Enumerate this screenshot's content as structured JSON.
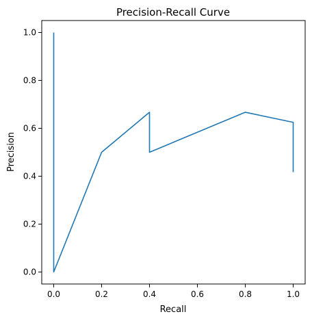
{
  "chart_data": {
    "type": "line",
    "title": "Precision-Recall Curve",
    "xlabel": "Recall",
    "ylabel": "Precision",
    "xlim": [
      -0.05,
      1.05
    ],
    "ylim": [
      -0.05,
      1.05
    ],
    "xticks": [
      0.0,
      0.2,
      0.4,
      0.6,
      0.8,
      1.0
    ],
    "yticks": [
      0.0,
      0.2,
      0.4,
      0.6,
      0.8,
      1.0
    ],
    "xtick_labels": [
      "0.0",
      "0.2",
      "0.4",
      "0.6",
      "0.8",
      "1.0"
    ],
    "ytick_labels": [
      "0.0",
      "0.2",
      "0.4",
      "0.6",
      "0.8",
      "1.0"
    ],
    "grid": false,
    "legend": "none",
    "series": [
      {
        "color": "#1f77b4",
        "x": [
          0.0,
          0.0,
          0.2,
          0.4,
          0.4,
          0.8,
          1.0,
          1.0
        ],
        "y": [
          1.0,
          0.0,
          0.5,
          0.667,
          0.5,
          0.667,
          0.625,
          0.417
        ]
      }
    ]
  }
}
